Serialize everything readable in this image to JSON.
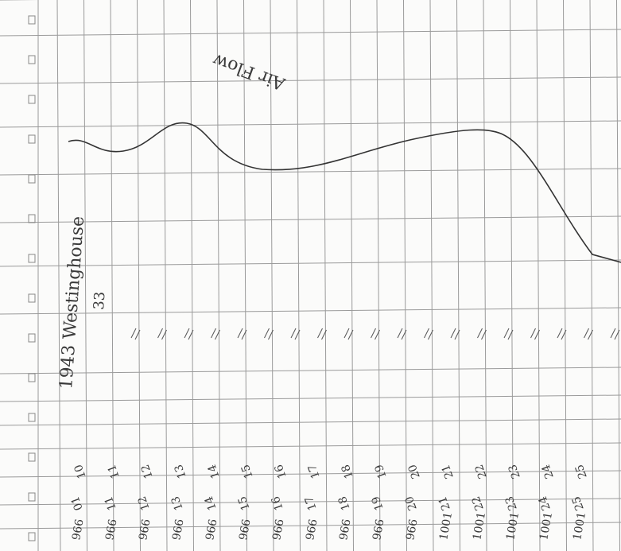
{
  "annotations": {
    "curve_label": "Air Flow",
    "side_note": "1943 Westinghouse",
    "side_note_num": "33"
  },
  "bottom_rows": [
    [
      "966",
      "01",
      "10"
    ],
    [
      "966",
      "11",
      "11"
    ],
    [
      "966",
      "12",
      "12"
    ],
    [
      "966",
      "13",
      "13"
    ],
    [
      "966",
      "14",
      "14"
    ],
    [
      "966",
      "15",
      "15"
    ],
    [
      "966",
      "16",
      "16"
    ],
    [
      "966",
      "17",
      "17"
    ],
    [
      "966",
      "18",
      "18"
    ],
    [
      "966",
      "19",
      "19"
    ],
    [
      "966",
      "20",
      "20"
    ],
    [
      "1001",
      "21",
      "21"
    ],
    [
      "1001",
      "22",
      "22"
    ],
    [
      "1001",
      "23",
      "23"
    ],
    [
      "1001",
      "24",
      "24"
    ],
    [
      "1001",
      "25",
      "25"
    ]
  ]
}
